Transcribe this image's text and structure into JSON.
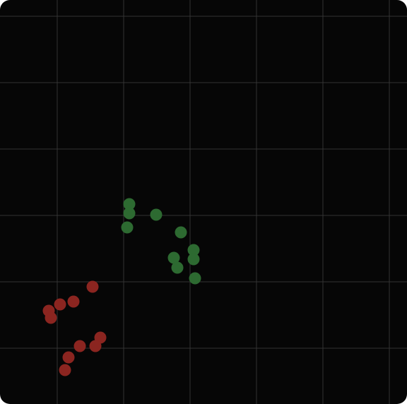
{
  "canvas": {
    "background": "#060606",
    "grid_color": "#333333",
    "grid_lines": {
      "vertical": 6,
      "horizontal": 6
    }
  },
  "scatter": {
    "green": {
      "color": "#2d6a31",
      "points": [
        [
          183,
          289
        ],
        [
          183,
          302
        ],
        [
          221,
          304
        ],
        [
          180,
          322
        ],
        [
          256,
          329
        ],
        [
          274,
          354
        ],
        [
          246,
          365
        ],
        [
          274,
          367
        ],
        [
          251,
          379
        ],
        [
          276,
          394
        ]
      ]
    },
    "red": {
      "color": "#8b2520",
      "points": [
        [
          131,
          406
        ],
        [
          104,
          427
        ],
        [
          85,
          431
        ],
        [
          69,
          440
        ],
        [
          72,
          450
        ],
        [
          142,
          478
        ],
        [
          135,
          490
        ],
        [
          113,
          490
        ],
        [
          97,
          506
        ],
        [
          92,
          524
        ]
      ]
    }
  }
}
